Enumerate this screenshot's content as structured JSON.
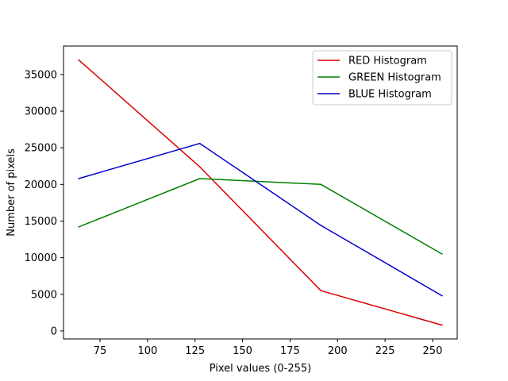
{
  "chart_data": {
    "type": "line",
    "title": "",
    "xlabel": "Pixel values (0-255)",
    "ylabel": "Number of pixels",
    "x": [
      63.75,
      127.5,
      191.25,
      255
    ],
    "series": [
      {
        "name": "RED Histogram",
        "color": "#dd0000",
        "values": [
          37000,
          22400,
          5500,
          800
        ]
      },
      {
        "name": "GREEN Histogram",
        "color": "#008000",
        "values": [
          14200,
          20800,
          20000,
          10500
        ]
      },
      {
        "name": "BLUE Histogram",
        "color": "#0000cc",
        "values": [
          20800,
          25600,
          14400,
          4800
        ]
      }
    ],
    "xlim": [
      55.78,
      262.97
    ],
    "ylim": [
      -1090,
      38890
    ],
    "xticks": [
      75,
      100,
      125,
      150,
      175,
      200,
      225,
      250
    ],
    "yticks": [
      0,
      5000,
      10000,
      15000,
      20000,
      25000,
      30000,
      35000
    ],
    "grid": false,
    "legend_position": "upper right"
  }
}
